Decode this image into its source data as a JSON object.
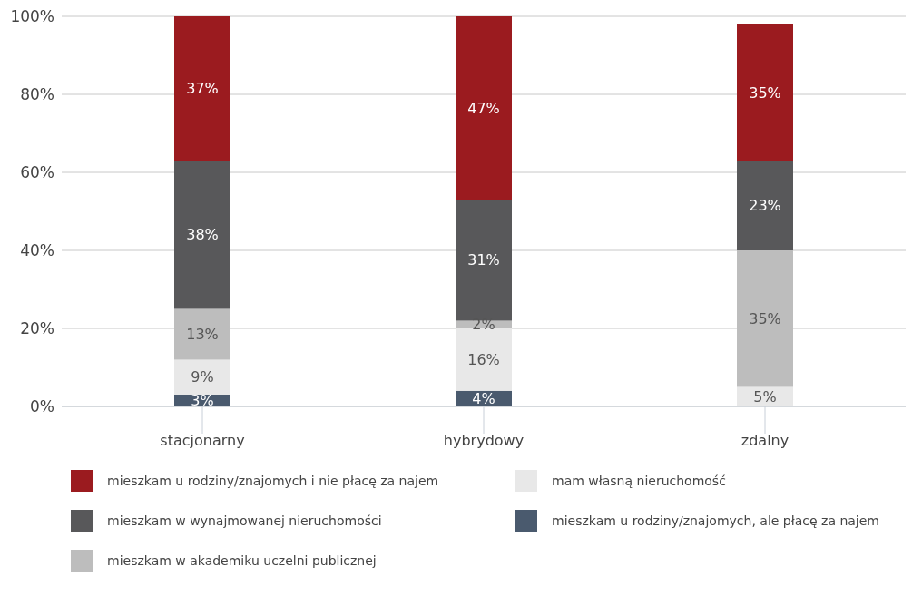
{
  "chart_data": {
    "type": "bar",
    "stacked": true,
    "categories": [
      "stacjonarny",
      "hybrydowy",
      "zdalny"
    ],
    "series": [
      {
        "name": "mieszkam u rodziny/znajomych, ale płacę za najem",
        "color": "#4a5a6e",
        "values": [
          3,
          4,
          null
        ],
        "value_labels": [
          "3%",
          "4%",
          null
        ]
      },
      {
        "name": "mam własną nieruchomość",
        "color": "#e8e8e8",
        "values": [
          9,
          16,
          5
        ],
        "value_labels": [
          "9%",
          "16%",
          "5%"
        ]
      },
      {
        "name": "mieszkam w akademiku uczelni publicznej",
        "color": "#bdbdbd",
        "values": [
          13,
          2,
          35
        ],
        "value_labels": [
          "13%",
          "2%",
          "35%"
        ]
      },
      {
        "name": "mieszkam w wynajmowanej nieruchomości",
        "color": "#58585a",
        "values": [
          38,
          31,
          23
        ],
        "value_labels": [
          "38%",
          "31%",
          "23%"
        ]
      },
      {
        "name": "mieszkam u rodziny/znajomych i nie płacę za najem",
        "color": "#9b1b1f",
        "values": [
          37,
          47,
          35
        ],
        "value_labels": [
          "37%",
          "47%",
          "35%"
        ]
      }
    ],
    "ylim": [
      0,
      100
    ],
    "yticks": [
      {
        "value": 0,
        "label": "0%"
      },
      {
        "value": 20,
        "label": "20%"
      },
      {
        "value": 40,
        "label": "40%"
      },
      {
        "value": 60,
        "label": "60%"
      },
      {
        "value": 80,
        "label": "80%"
      },
      {
        "value": 100,
        "label": "100%"
      }
    ],
    "grid": "y",
    "legend": "bottom"
  }
}
